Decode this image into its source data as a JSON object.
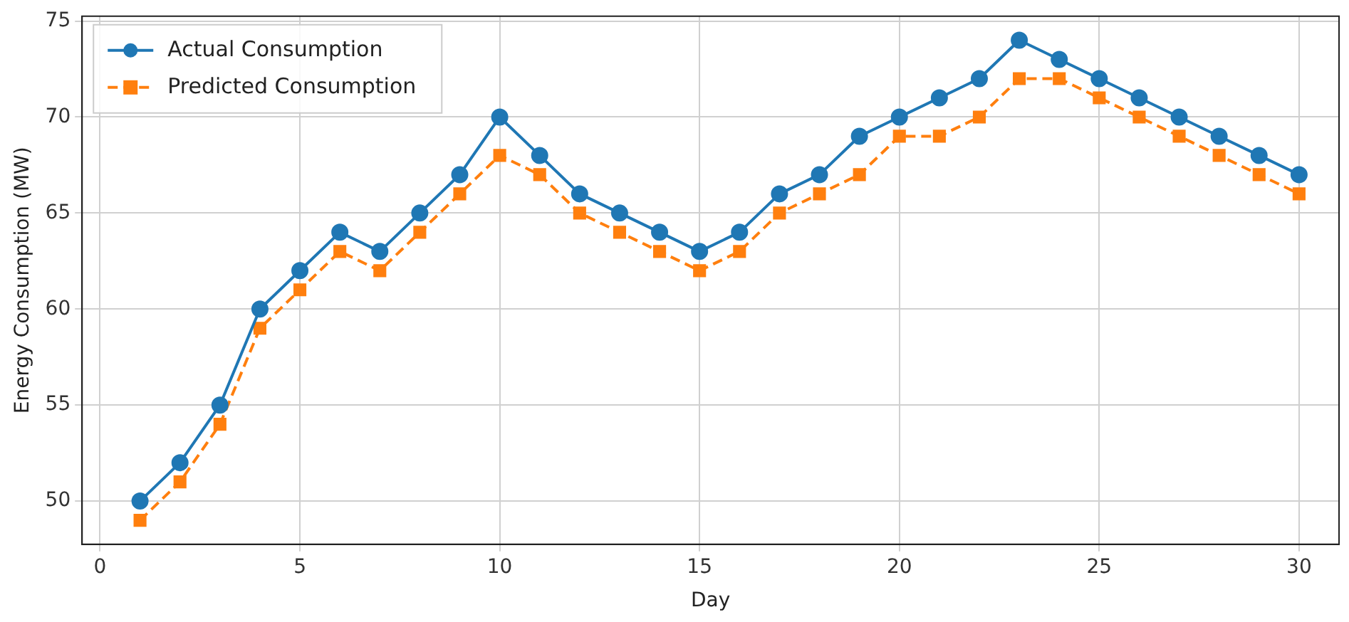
{
  "chart_data": {
    "type": "line",
    "xlabel": "Day",
    "ylabel": "Energy Consumption (MW)",
    "x": [
      1,
      2,
      3,
      4,
      5,
      6,
      7,
      8,
      9,
      10,
      11,
      12,
      13,
      14,
      15,
      16,
      17,
      18,
      19,
      20,
      21,
      22,
      23,
      24,
      25,
      26,
      27,
      28,
      29,
      30
    ],
    "series": [
      {
        "name": "Actual Consumption",
        "color": "#1f77b4",
        "marker": "circle",
        "line_style": "solid",
        "values": [
          50,
          52,
          55,
          60,
          62,
          64,
          63,
          65,
          67,
          70,
          68,
          66,
          65,
          64,
          63,
          64,
          66,
          67,
          69,
          70,
          71,
          72,
          74,
          73,
          72,
          71,
          70,
          69,
          68,
          67
        ]
      },
      {
        "name": "Predicted Consumption",
        "color": "#ff7f0e",
        "marker": "square",
        "line_style": "dashed",
        "values": [
          49,
          51,
          54,
          59,
          61,
          63,
          62,
          64,
          66,
          68,
          67,
          65,
          64,
          63,
          62,
          63,
          65,
          66,
          67,
          69,
          69,
          70,
          72,
          72,
          71,
          70,
          69,
          68,
          67,
          66
        ]
      }
    ],
    "xlim": [
      -0.45,
      31
    ],
    "xticks": [
      0,
      5,
      10,
      15,
      20,
      25,
      30
    ],
    "ylim": [
      47.75,
      75.25
    ],
    "yticks": [
      50,
      55,
      60,
      65,
      70,
      75
    ],
    "grid": true,
    "legend": "top left"
  }
}
